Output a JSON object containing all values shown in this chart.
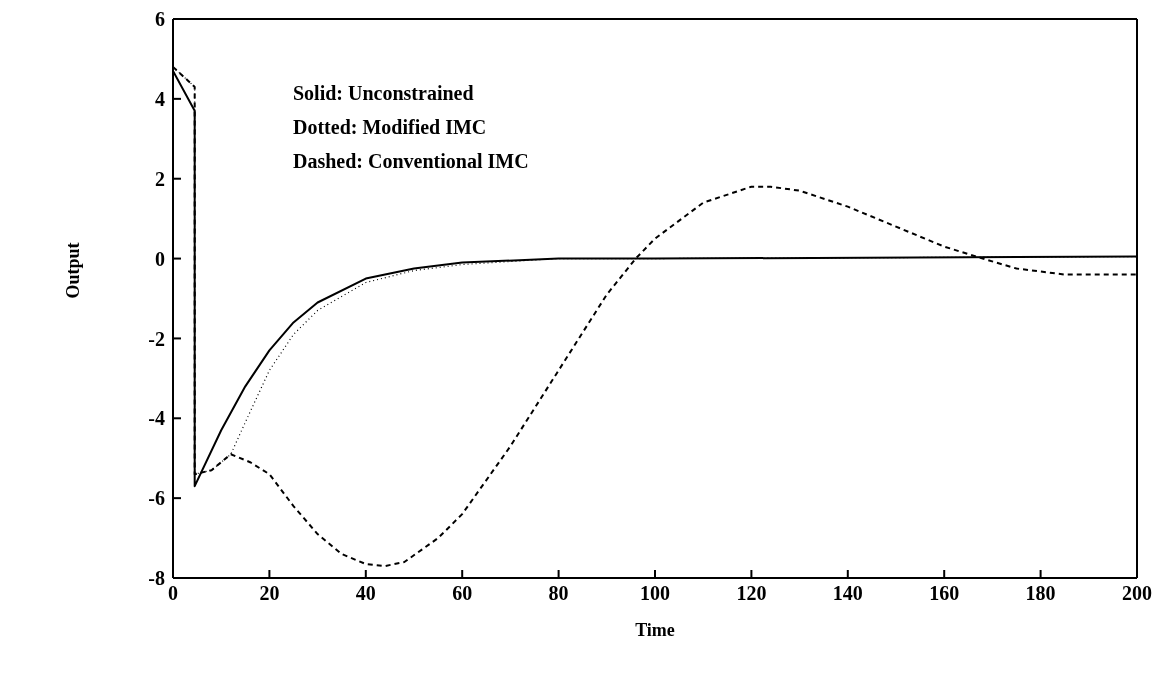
{
  "chart_data": {
    "type": "line",
    "xlabel": "Time",
    "ylabel": "Output",
    "xlim": [
      0,
      200
    ],
    "xticks": [
      0,
      20,
      40,
      60,
      80,
      100,
      120,
      140,
      160,
      180,
      200
    ],
    "ylim": [
      -8,
      6
    ],
    "yticks": [
      -8,
      -6,
      -4,
      -2,
      0,
      2,
      4,
      6
    ],
    "grid": false,
    "legend": false,
    "annotations": [
      "Solid:  Unconstrained",
      "Dotted: Modified IMC",
      "Dashed: Conventional IMC"
    ],
    "series": [
      {
        "color": "#000000",
        "line_style": "solid",
        "x": [
          0,
          4.5,
          4.5,
          10,
          15,
          20,
          25,
          30,
          40,
          50,
          60,
          80,
          100,
          200
        ],
        "values": [
          4.7,
          3.7,
          -5.7,
          -4.3,
          -3.2,
          -2.3,
          -1.6,
          -1.1,
          -0.5,
          -0.25,
          -0.1,
          0,
          0,
          0.05
        ]
      },
      {
        "color": "#000000",
        "line_style": "dotted",
        "x": [
          0,
          4.5,
          4.5,
          8,
          12,
          15,
          20,
          25,
          30,
          40,
          50,
          60,
          80,
          100,
          200
        ],
        "values": [
          4.8,
          4.3,
          -5.4,
          -5.3,
          -4.9,
          -4.1,
          -2.8,
          -1.9,
          -1.3,
          -0.6,
          -0.3,
          -0.15,
          0,
          0,
          0.05
        ]
      },
      {
        "color": "#000000",
        "line_style": "dashed",
        "x": [
          0,
          4.5,
          4.5,
          8,
          12,
          16,
          20,
          25,
          30,
          35,
          40,
          44,
          48,
          55,
          60,
          70,
          80,
          90,
          96,
          100,
          110,
          120,
          124,
          130,
          140,
          150,
          160,
          168,
          175,
          185,
          200
        ],
        "values": [
          4.8,
          4.3,
          -5.4,
          -5.3,
          -4.9,
          -5.1,
          -5.4,
          -6.2,
          -6.9,
          -7.4,
          -7.65,
          -7.7,
          -7.6,
          -7.0,
          -6.4,
          -4.7,
          -2.8,
          -0.9,
          0,
          0.5,
          1.4,
          1.8,
          1.8,
          1.7,
          1.3,
          0.8,
          0.3,
          0,
          -0.25,
          -0.4,
          -0.4
        ]
      }
    ]
  }
}
